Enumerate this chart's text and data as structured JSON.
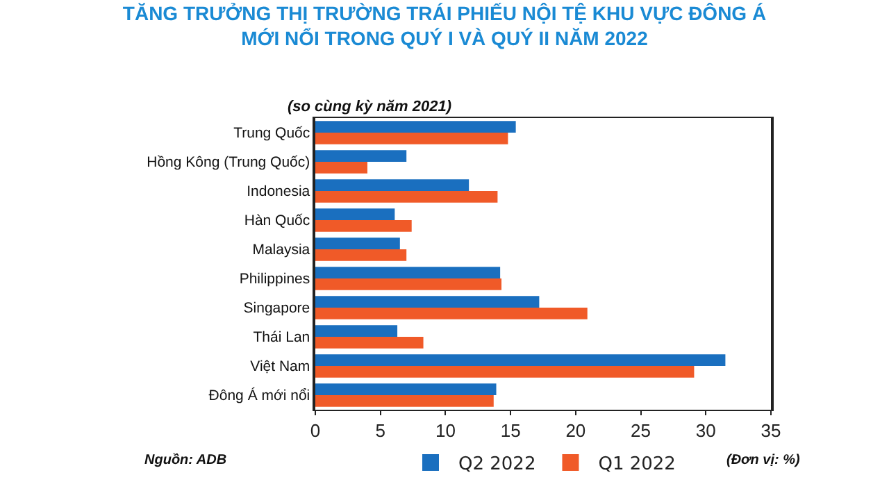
{
  "chart_data": {
    "type": "bar",
    "orientation": "horizontal",
    "title": "TĂNG TRƯỞNG THỊ TRƯỜNG TRÁI PHIẾU NỘI TỆ KHU VỰC ĐÔNG Á\nMỚI NỔI TRONG QUÝ I VÀ QUÝ II NĂM 2022",
    "subtitle": "(so cùng kỳ năm 2021)",
    "categories": [
      "Trung Quốc",
      "Hồng Kông (Trung Quốc)",
      "Indonesia",
      "Hàn Quốc",
      "Malaysia",
      "Philippines",
      "Singapore",
      "Thái Lan",
      "Việt Nam",
      "Đông Á mới nổi"
    ],
    "series": [
      {
        "name": "Q2 2022",
        "color": "#1a6fbf",
        "values": [
          15.4,
          7.0,
          11.8,
          6.1,
          6.5,
          14.2,
          17.2,
          6.3,
          31.5,
          13.9
        ]
      },
      {
        "name": "Q1 2022",
        "color": "#f05a28",
        "values": [
          14.8,
          4.0,
          14.0,
          7.4,
          7.0,
          14.3,
          20.9,
          8.3,
          29.1,
          13.7
        ]
      }
    ],
    "xlim": [
      0,
      35
    ],
    "xticks": [
      0,
      5,
      10,
      15,
      20,
      25,
      30,
      35
    ],
    "grid": false,
    "legend": "bottom",
    "annotations": [
      "Nguồn: ADB",
      "(Đơn vị: %)"
    ]
  }
}
